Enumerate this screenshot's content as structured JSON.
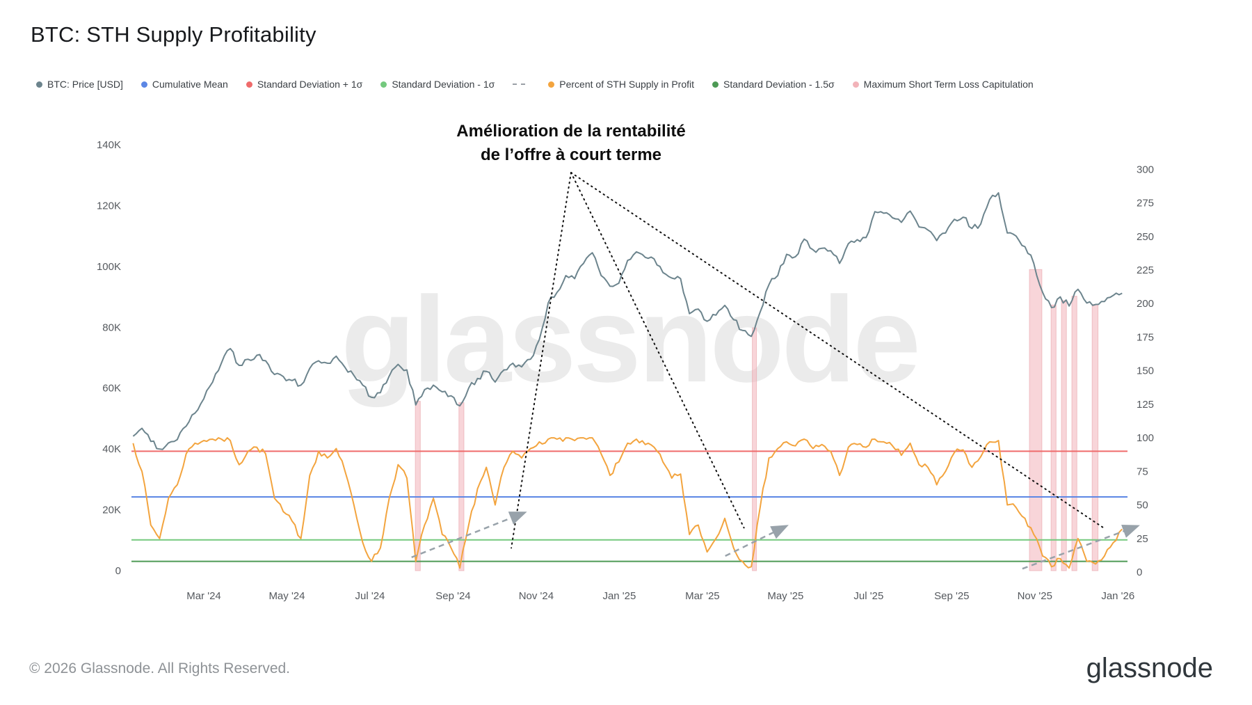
{
  "header": {
    "title": "BTC: STH Supply Profitability"
  },
  "legend": [
    {
      "label": "BTC: Price [USD]",
      "color": "#6c848d",
      "marker": "dot"
    },
    {
      "label": "Cumulative Mean",
      "color": "#5c87e5",
      "marker": "dot"
    },
    {
      "label": "Standard Deviation + 1σ",
      "color": "#ef6b6b",
      "marker": "dot"
    },
    {
      "label": "Standard Deviation - 1σ",
      "color": "#74c97e",
      "marker": "dot"
    },
    {
      "label": "",
      "color": "#9aa0a6",
      "marker": "dash"
    },
    {
      "label": "Percent of STH Supply in Profit",
      "color": "#f3a43e",
      "marker": "dot"
    },
    {
      "label": "Standard Deviation - 1.5σ",
      "color": "#4d9a55",
      "marker": "dot"
    },
    {
      "label": "Maximum Short Term Loss Capitulation",
      "color": "#f2b3b9",
      "marker": "dot"
    }
  ],
  "annotation": {
    "line1": "Amélioration de la rentabilité",
    "line2": "de l’offre à court terme"
  },
  "watermark": "glassnode",
  "footer": {
    "copyright": "© 2026 Glassnode. All Rights Reserved.",
    "logo": "glassnode"
  },
  "chart_data": {
    "type": "line",
    "title": "BTC: STH Supply Profitability",
    "legend_position": "top",
    "grid": false,
    "x_axis": {
      "unit": "months since Jan 2024",
      "ticks": [
        {
          "m": 2,
          "label": "Mar '24"
        },
        {
          "m": 4,
          "label": "May '24"
        },
        {
          "m": 6,
          "label": "Jul '24"
        },
        {
          "m": 8,
          "label": "Sep '24"
        },
        {
          "m": 10,
          "label": "Nov '24"
        },
        {
          "m": 12,
          "label": "Jan '25"
        },
        {
          "m": 14,
          "label": "Mar '25"
        },
        {
          "m": 16,
          "label": "May '25"
        },
        {
          "m": 18,
          "label": "Jul '25"
        },
        {
          "m": 20,
          "label": "Sep '25"
        },
        {
          "m": 22,
          "label": "Nov '25"
        },
        {
          "m": 24,
          "label": "Jan '26"
        }
      ]
    },
    "left_axis": {
      "title": "BTC Price [USD]",
      "unit": "thousand USD",
      "min": 0,
      "max": 140,
      "ticks": [
        {
          "v": 0,
          "label": "0"
        },
        {
          "v": 20,
          "label": "20K"
        },
        {
          "v": 40,
          "label": "40K"
        },
        {
          "v": 60,
          "label": "60K"
        },
        {
          "v": 80,
          "label": "80K"
        },
        {
          "v": 100,
          "label": "100K"
        },
        {
          "v": 120,
          "label": "120K"
        },
        {
          "v": 140,
          "label": "140K"
        }
      ]
    },
    "right_axis": {
      "title": "Percent / sigma scale",
      "min": 0,
      "max": 300,
      "ticks": [
        {
          "v": 0,
          "label": "0"
        },
        {
          "v": 25,
          "label": "25"
        },
        {
          "v": 50,
          "label": "50"
        },
        {
          "v": 75,
          "label": "75"
        },
        {
          "v": 100,
          "label": "100"
        },
        {
          "v": 125,
          "label": "125"
        },
        {
          "v": 150,
          "label": "150"
        },
        {
          "v": 175,
          "label": "175"
        },
        {
          "v": 200,
          "label": "200"
        },
        {
          "v": 225,
          "label": "225"
        },
        {
          "v": 250,
          "label": "250"
        },
        {
          "v": 275,
          "label": "275"
        },
        {
          "v": 300,
          "label": "300"
        }
      ]
    },
    "series": [
      {
        "name": "BTC: Price [USD]",
        "axis": "left",
        "unit": "thousand USD",
        "color": "#6c848d",
        "x_start": 0.3,
        "x_step": 0.2125,
        "values": [
          44.2,
          46.8,
          42.5,
          40.0,
          42.0,
          43.1,
          47.5,
          51.8,
          56.5,
          62.0,
          68.3,
          73.0,
          67.5,
          69.5,
          70.8,
          69.0,
          64.5,
          63.8,
          62.5,
          61.0,
          66.5,
          69.0,
          68.2,
          70.5,
          66.8,
          64.2,
          61.0,
          57.0,
          58.5,
          64.0,
          67.8,
          66.0,
          54.5,
          59.5,
          61.0,
          58.8,
          57.5,
          54.2,
          60.0,
          63.2,
          65.5,
          62.0,
          66.0,
          68.2,
          67.0,
          69.5,
          76.0,
          88.0,
          91.5,
          97.0,
          96.0,
          101.0,
          104.5,
          97.0,
          93.5,
          94.5,
          102.0,
          104.8,
          103.0,
          102.5,
          98.0,
          96.2,
          96.0,
          84.5,
          86.0,
          82.0,
          84.0,
          87.2,
          82.5,
          79.0,
          77.0,
          85.0,
          94.0,
          97.0,
          104.0,
          103.2,
          109.0,
          105.5,
          106.0,
          105.2,
          101.0,
          107.5,
          108.8,
          109.5,
          118.0,
          117.5,
          116.0,
          114.5,
          118.2,
          113.0,
          112.0,
          108.5,
          111.0,
          115.5,
          116.2,
          112.5,
          114.0,
          122.0,
          124.2,
          111.0,
          110.0,
          106.5,
          101.0,
          91.5,
          86.5,
          90.0,
          87.0,
          92.5,
          88.0,
          87.5,
          88.5,
          90.5,
          91.2
        ]
      },
      {
        "name": "Percent of STH Supply in Profit",
        "axis": "right",
        "unit": "percent",
        "color": "#f3a43e",
        "x_start": 0.3,
        "x_step": 0.2125,
        "values": [
          96,
          75,
          35,
          25,
          55,
          65,
          88,
          96,
          98,
          99,
          99,
          98,
          80,
          90,
          93,
          88,
          55,
          45,
          38,
          25,
          72,
          90,
          85,
          92,
          75,
          50,
          22,
          8,
          18,
          55,
          80,
          70,
          8,
          35,
          55,
          28,
          18,
          3,
          35,
          62,
          78,
          50,
          78,
          90,
          85,
          92,
          97,
          99,
          99,
          100,
          98,
          100,
          100,
          88,
          72,
          82,
          96,
          99,
          95,
          93,
          82,
          70,
          73,
          28,
          35,
          15,
          25,
          40,
          18,
          8,
          4,
          48,
          85,
          92,
          97,
          94,
          99,
          92,
          95,
          90,
          72,
          93,
          95,
          93,
          99,
          97,
          94,
          87,
          96,
          80,
          78,
          65,
          75,
          89,
          91,
          78,
          86,
          97,
          98,
          50,
          48,
          40,
          28,
          12,
          4,
          10,
          3,
          25,
          8,
          6,
          12,
          22,
          32
        ]
      }
    ],
    "reference_lines": [
      {
        "name": "Standard Deviation + 1σ",
        "axis": "right",
        "value": 90,
        "color": "#ef6b6b"
      },
      {
        "name": "Cumulative Mean",
        "axis": "right",
        "value": 56,
        "color": "#5c87e5"
      },
      {
        "name": "Standard Deviation - 1σ",
        "axis": "right",
        "value": 24,
        "color": "#74c97e"
      },
      {
        "name": "Standard Deviation - 1.5σ",
        "axis": "right",
        "value": 8,
        "color": "#4d9a55"
      }
    ],
    "capitulation_bands": {
      "name": "Maximum Short Term Loss Capitulation",
      "color": "#f2b3b9",
      "bands": [
        {
          "m": 7.15,
          "w": 0.12
        },
        {
          "m": 8.2,
          "w": 0.12
        },
        {
          "m": 15.25,
          "w": 0.1
        },
        {
          "m": 22.02,
          "w": 0.3
        },
        {
          "m": 22.45,
          "w": 0.12
        },
        {
          "m": 22.7,
          "w": 0.12
        },
        {
          "m": 22.95,
          "w": 0.12
        },
        {
          "m": 23.45,
          "w": 0.14
        }
      ]
    },
    "annotation_pointers": {
      "targets": [
        {
          "m": 9.4,
          "v": 18
        },
        {
          "m": 15.0,
          "v": 33
        },
        {
          "m": 23.7,
          "v": 32
        }
      ]
    },
    "trend_arrows": [
      {
        "from": {
          "m": 7.0,
          "v": 11
        },
        "to": {
          "m": 9.7,
          "v": 44
        }
      },
      {
        "from": {
          "m": 14.55,
          "v": 12
        },
        "to": {
          "m": 16.0,
          "v": 34
        }
      },
      {
        "from": {
          "m": 21.7,
          "v": 2.5
        },
        "to": {
          "m": 24.45,
          "v": 34
        }
      }
    ]
  }
}
